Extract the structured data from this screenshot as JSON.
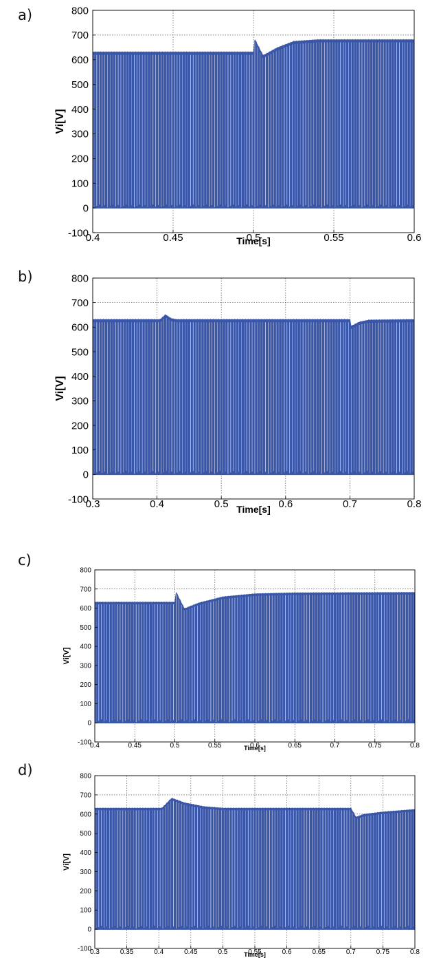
{
  "colors": {
    "signal": "#3a56a8",
    "grid": "#555555",
    "axis": "#000000"
  },
  "chart_data": [
    {
      "id": "a",
      "panel_label": "a)",
      "type": "line",
      "xlabel": "Time[s]",
      "ylabel": "Vi[V]",
      "xlim": [
        0.4,
        0.6
      ],
      "ylim": [
        -100,
        800
      ],
      "xticks": [
        "0.4",
        "0.45",
        "0.5",
        "0.55",
        "0.6"
      ],
      "xtick_values": [
        0.4,
        0.45,
        0.5,
        0.55,
        0.6
      ],
      "yticks": [
        "-100",
        "0",
        "100",
        "200",
        "300",
        "400",
        "500",
        "600",
        "700",
        "800"
      ],
      "ytick_values": [
        -100,
        0,
        100,
        200,
        300,
        400,
        500,
        600,
        700,
        800
      ],
      "grid": true,
      "series": [
        {
          "name": "",
          "low": 0,
          "envelope": [
            [
              0.4,
              632
            ],
            [
              0.5,
              632
            ],
            [
              0.5005,
              688
            ],
            [
              0.506,
              618
            ],
            [
              0.515,
              650
            ],
            [
              0.525,
              675
            ],
            [
              0.54,
              682
            ],
            [
              0.6,
              682
            ]
          ]
        }
      ]
    },
    {
      "id": "b",
      "panel_label": "b)",
      "type": "line",
      "xlabel": "Time[s]",
      "ylabel": "Vi[V]",
      "xlim": [
        0.3,
        0.8
      ],
      "ylim": [
        -100,
        800
      ],
      "xticks": [
        "0.3",
        "0.4",
        "0.5",
        "0.6",
        "0.7",
        "0.8"
      ],
      "xtick_values": [
        0.3,
        0.4,
        0.5,
        0.6,
        0.7,
        0.8
      ],
      "yticks": [
        "-100",
        "0",
        "100",
        "200",
        "300",
        "400",
        "500",
        "600",
        "700",
        "800"
      ],
      "ytick_values": [
        -100,
        0,
        100,
        200,
        300,
        400,
        500,
        600,
        700,
        800
      ],
      "grid": true,
      "series": [
        {
          "name": "",
          "low": 0,
          "envelope": [
            [
              0.3,
              632
            ],
            [
              0.405,
              632
            ],
            [
              0.413,
              652
            ],
            [
              0.422,
              636
            ],
            [
              0.43,
              632
            ],
            [
              0.7,
              632
            ],
            [
              0.702,
              605
            ],
            [
              0.715,
              622
            ],
            [
              0.73,
              630
            ],
            [
              0.8,
              632
            ]
          ]
        }
      ]
    },
    {
      "id": "c",
      "panel_label": "c)",
      "type": "line",
      "xlabel": "Time[s]",
      "ylabel": "Vi[V]",
      "xlim": [
        0.4,
        0.8
      ],
      "ylim": [
        -100,
        800
      ],
      "xticks": [
        "0.4",
        "0.45",
        "0.5",
        "0.55",
        "0.6",
        "0.65",
        "0.7",
        "0.75",
        "0.8"
      ],
      "xtick_values": [
        0.4,
        0.45,
        0.5,
        0.55,
        0.6,
        0.65,
        0.7,
        0.75,
        0.8
      ],
      "yticks": [
        "-100",
        "0",
        "100",
        "200",
        "300",
        "400",
        "500",
        "600",
        "700",
        "800"
      ],
      "ytick_values": [
        -100,
        0,
        100,
        200,
        300,
        400,
        500,
        600,
        700,
        800
      ],
      "grid": true,
      "series": [
        {
          "name": "",
          "low": 0,
          "envelope": [
            [
              0.4,
              632
            ],
            [
              0.5,
              632
            ],
            [
              0.501,
              690
            ],
            [
              0.512,
              598
            ],
            [
              0.53,
              628
            ],
            [
              0.56,
              660
            ],
            [
              0.6,
              676
            ],
            [
              0.65,
              681
            ],
            [
              0.8,
              683
            ]
          ]
        }
      ]
    },
    {
      "id": "d",
      "panel_label": "d)",
      "type": "line",
      "xlabel": "Time[s]",
      "ylabel": "Vi[V]",
      "xlim": [
        0.3,
        0.8
      ],
      "ylim": [
        -100,
        800
      ],
      "xticks": [
        "0.3",
        "0.35",
        "0.4",
        "0.45",
        "0.5",
        "0.55",
        "0.6",
        "0.65",
        "0.7",
        "0.75",
        "0.8"
      ],
      "xtick_values": [
        0.3,
        0.35,
        0.4,
        0.45,
        0.5,
        0.55,
        0.6,
        0.65,
        0.7,
        0.75,
        0.8
      ],
      "yticks": [
        "-100",
        "0",
        "100",
        "200",
        "300",
        "400",
        "500",
        "600",
        "700",
        "800"
      ],
      "ytick_values": [
        -100,
        0,
        100,
        200,
        300,
        400,
        500,
        600,
        700,
        800
      ],
      "grid": true,
      "series": [
        {
          "name": "",
          "low": 0,
          "envelope": [
            [
              0.3,
              632
            ],
            [
              0.405,
              632
            ],
            [
              0.42,
              684
            ],
            [
              0.44,
              660
            ],
            [
              0.47,
              640
            ],
            [
              0.5,
              632
            ],
            [
              0.7,
              632
            ],
            [
              0.708,
              585
            ],
            [
              0.72,
              600
            ],
            [
              0.75,
              612
            ],
            [
              0.8,
              625
            ]
          ]
        }
      ]
    }
  ]
}
